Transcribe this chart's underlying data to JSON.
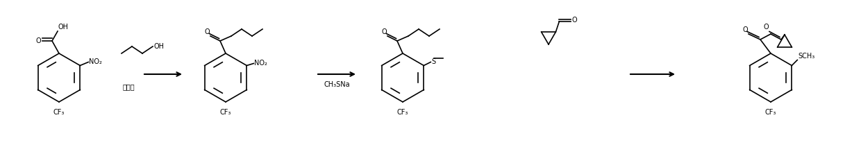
{
  "bg_color": "#ffffff",
  "line_color": "#000000",
  "text_color": "#000000",
  "figsize": [
    12.4,
    2.12
  ],
  "dpi": 100,
  "reaction_label_1": "浓硫酸",
  "reaction_label_2": "CH₃SNa",
  "mol1_labels": {
    "cooh": "OH",
    "no2": "NO₂",
    "cf3": "CF₃",
    "co": "O"
  },
  "mol2_labels": {
    "oh": "OH"
  },
  "mol3_labels": {
    "no2": "NO₂",
    "cf3": "CF₃",
    "co": "O"
  },
  "mol4_labels": {
    "s": "S",
    "cf3": "CF₃",
    "co": "O"
  },
  "mol5_labels": {
    "o": "O",
    "co": "O"
  },
  "mol6_labels": {
    "o1": "O",
    "o2": "O",
    "sch3": "SCH₃",
    "cf3": "CF₃"
  }
}
